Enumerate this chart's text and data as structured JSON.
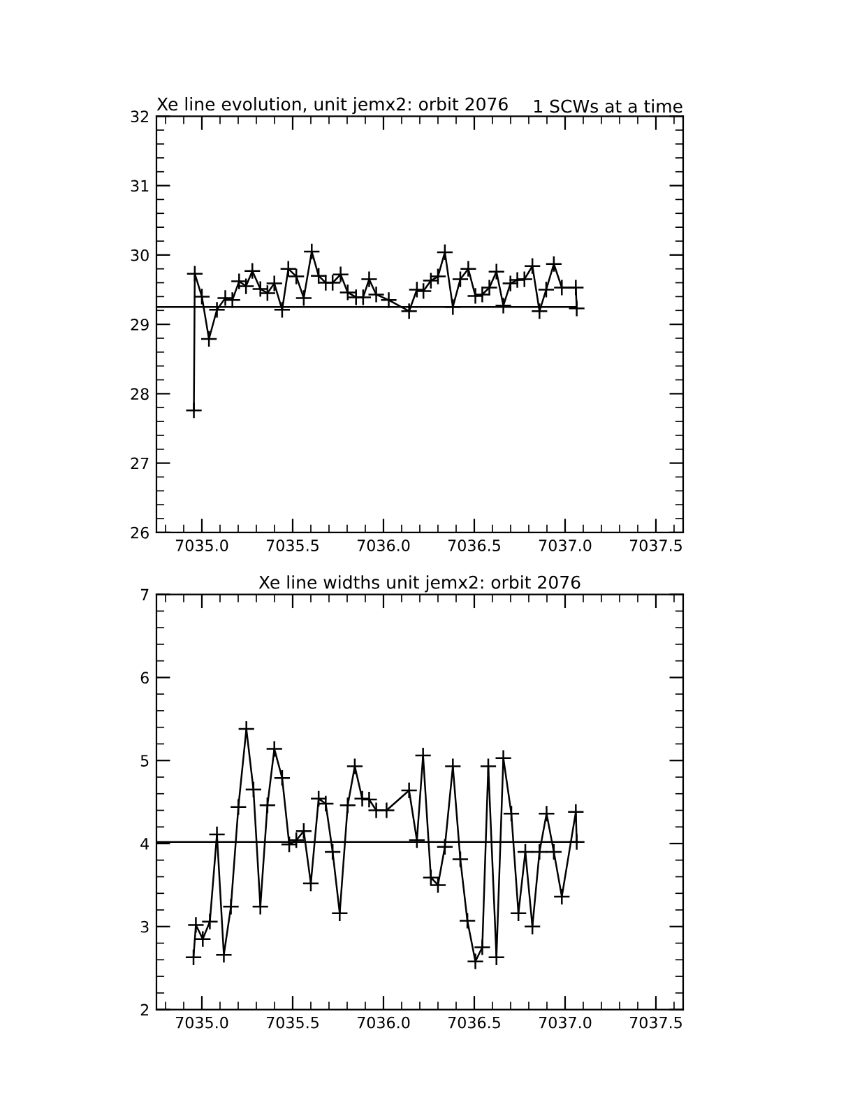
{
  "chart_data": [
    {
      "type": "line",
      "title": "Xe line evolution, unit jemx2: orbit 2076",
      "annotations": [
        "1 SCWs at a time"
      ],
      "xlim": [
        7034.75,
        7037.65
      ],
      "xticks": [
        {
          "value": 7035,
          "label": "7035.0"
        },
        {
          "value": 7035.5,
          "label": "7035.5"
        },
        {
          "value": 7036,
          "label": "7036.0"
        },
        {
          "value": 7036.5,
          "label": "7036.5"
        },
        {
          "value": 7037,
          "label": "7037.0"
        },
        {
          "value": 7037.5,
          "label": "7037.5"
        }
      ],
      "ylim": [
        26,
        32
      ],
      "yticks": [
        26,
        27,
        28,
        29,
        30,
        31,
        32
      ],
      "grid": false,
      "legend": false,
      "series": [
        {
          "color": "#000000",
          "marker": "cross",
          "line_style": "solid",
          "x": [
            7034.956,
            7034.961,
            7035.0,
            7035.039,
            7035.083,
            7035.129,
            7035.168,
            7035.205,
            7035.243,
            7035.278,
            7035.322,
            7035.361,
            7035.399,
            7035.442,
            7035.476,
            7035.52,
            7035.561,
            7035.605,
            7035.643,
            7035.682,
            7035.72,
            7035.764,
            7035.803,
            7035.849,
            7035.888,
            7035.921,
            7035.96,
            7036.029,
            7036.141,
            7036.184,
            7036.22,
            7036.261,
            7036.3,
            7036.338,
            7036.382,
            7036.423,
            7036.467,
            7036.506,
            7036.544,
            7036.583,
            7036.622,
            7036.66,
            7036.699,
            7036.737,
            7036.776,
            7036.82,
            7036.859,
            7036.896,
            7036.938,
            7036.982,
            7037.059,
            7037.064
          ],
          "values": [
            27.76,
            29.73,
            29.4,
            28.79,
            29.21,
            29.38,
            29.35,
            29.62,
            29.55,
            29.77,
            29.51,
            29.45,
            29.59,
            29.21,
            29.8,
            29.69,
            29.38,
            30.05,
            29.7,
            29.6,
            29.6,
            29.72,
            29.46,
            29.39,
            29.39,
            29.65,
            29.43,
            29.35,
            29.19,
            29.5,
            29.48,
            29.63,
            29.69,
            30.04,
            29.25,
            29.65,
            29.8,
            29.41,
            29.43,
            29.53,
            29.76,
            29.27,
            29.59,
            29.64,
            29.65,
            29.84,
            29.19,
            29.5,
            29.87,
            29.53,
            29.53,
            29.23
          ]
        },
        {
          "color": "#000000",
          "marker": "none",
          "line_style": "solid",
          "x": [
            7034.75,
            7037.064
          ],
          "values": [
            29.25,
            29.25
          ]
        }
      ]
    },
    {
      "type": "line",
      "title": "Xe line widths unit jemx2: orbit 2076",
      "xlim": [
        7034.75,
        7037.65
      ],
      "xticks": [
        {
          "value": 7035,
          "label": "7035.0"
        },
        {
          "value": 7035.5,
          "label": "7035.5"
        },
        {
          "value": 7036,
          "label": "7036.0"
        },
        {
          "value": 7036.5,
          "label": "7036.5"
        },
        {
          "value": 7037,
          "label": "7037.0"
        },
        {
          "value": 7037.5,
          "label": "7037.5"
        }
      ],
      "ylim": [
        2,
        7
      ],
      "yticks": [
        2,
        3,
        4,
        5,
        6,
        7
      ],
      "grid": false,
      "legend": false,
      "series": [
        {
          "color": "#000000",
          "marker": "cross",
          "line_style": "solid",
          "x": [
            7034.954,
            7034.967,
            7035.005,
            7035.044,
            7035.083,
            7035.121,
            7035.16,
            7035.201,
            7035.245,
            7035.284,
            7035.322,
            7035.361,
            7035.399,
            7035.442,
            7035.481,
            7035.52,
            7035.561,
            7035.6,
            7035.643,
            7035.682,
            7035.72,
            7035.759,
            7035.803,
            7035.842,
            7035.883,
            7035.921,
            7035.96,
            7036.017,
            7036.141,
            7036.184,
            7036.218,
            7036.261,
            7036.3,
            7036.338,
            7036.382,
            7036.423,
            7036.462,
            7036.506,
            7036.544,
            7036.577,
            7036.622,
            7036.66,
            7036.704,
            7036.743,
            7036.781,
            7036.82,
            7036.859,
            7036.898,
            7036.938,
            7036.982,
            7037.059,
            7037.064
          ],
          "values": [
            2.63,
            3.02,
            2.85,
            3.06,
            4.11,
            2.66,
            3.24,
            4.44,
            5.38,
            4.65,
            3.24,
            4.46,
            5.14,
            4.79,
            3.99,
            4.04,
            4.15,
            3.52,
            4.54,
            4.48,
            3.9,
            3.16,
            4.46,
            4.93,
            4.54,
            4.53,
            4.4,
            4.4,
            4.64,
            4.04,
            5.06,
            3.59,
            3.5,
            3.96,
            4.93,
            3.81,
            3.07,
            2.58,
            2.75,
            4.93,
            2.63,
            5.03,
            4.36,
            3.16,
            3.9,
            3.0,
            3.9,
            4.36,
            3.9,
            3.36,
            4.38,
            4.02
          ]
        },
        {
          "color": "#000000",
          "marker": "none",
          "line_style": "solid",
          "x": [
            7034.75,
            7037.064
          ],
          "values": [
            4.02,
            4.02
          ]
        }
      ]
    }
  ]
}
